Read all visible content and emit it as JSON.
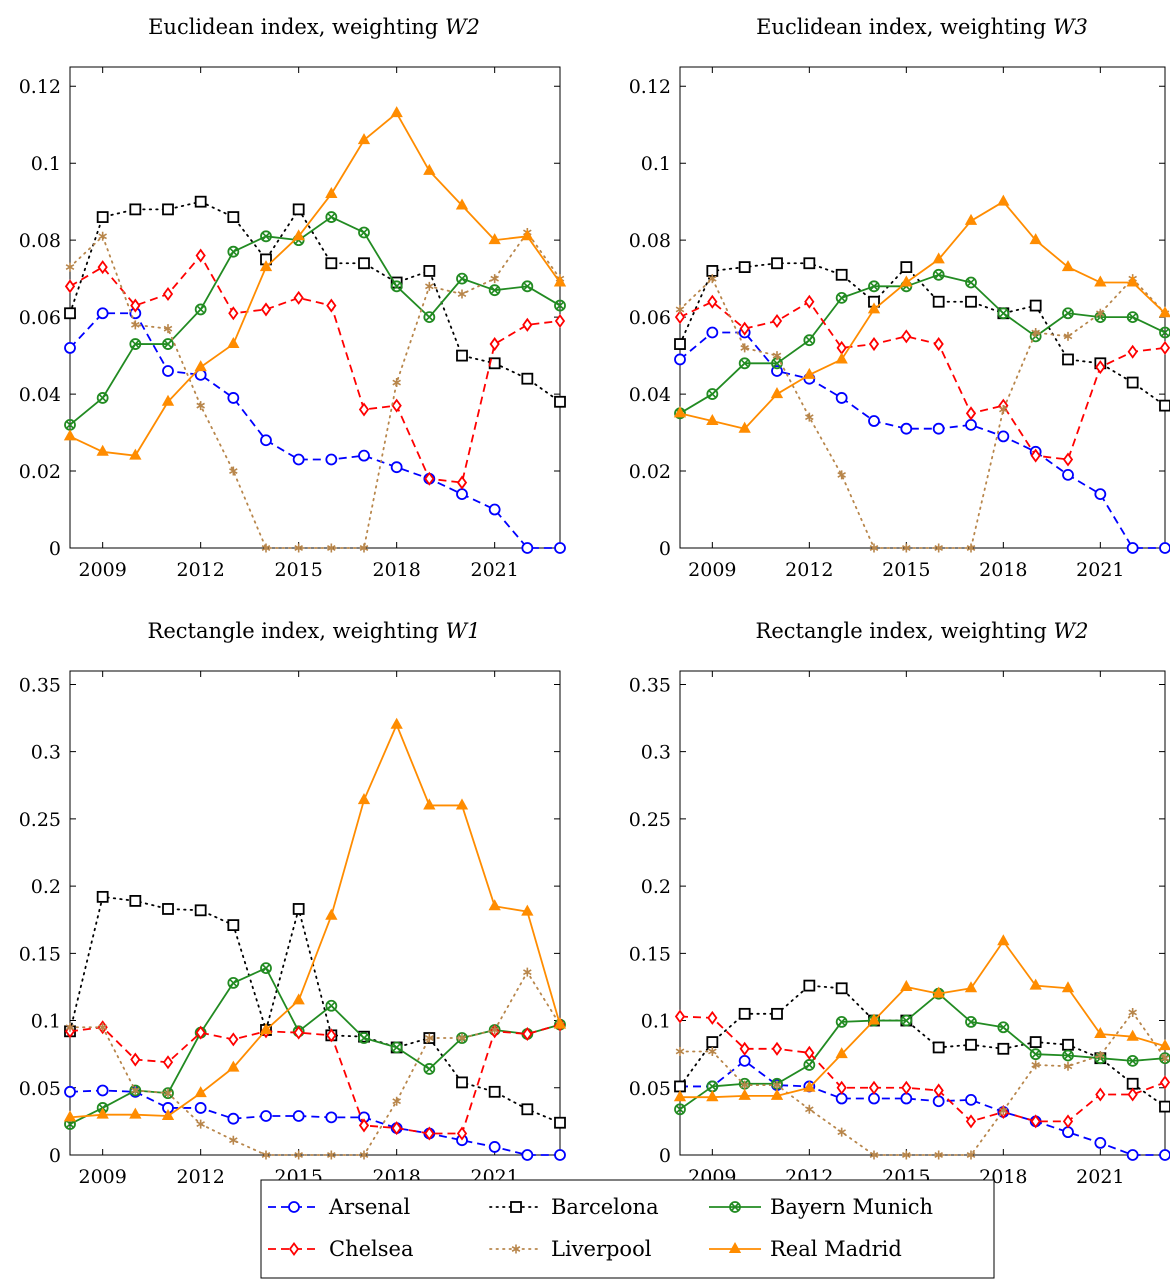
{
  "colors": {
    "Arsenal": "#0000ff",
    "Barcelona": "#000000",
    "Bayern Munich": "#228b22",
    "Chelsea": "#ff0000",
    "Liverpool": "#b8864b",
    "Real Madrid": "#ff8c00"
  },
  "legend": {
    "placement": "bottom-center",
    "entries": [
      {
        "name": "Arsenal",
        "line": "dashed",
        "marker": "circle"
      },
      {
        "name": "Barcelona",
        "line": "dotted",
        "marker": "square"
      },
      {
        "name": "Bayern Munich",
        "line": "solid",
        "marker": "circle-cross"
      },
      {
        "name": "Chelsea",
        "line": "dashed",
        "marker": "diamond"
      },
      {
        "name": "Liverpool",
        "line": "dotted",
        "marker": "asterisk"
      },
      {
        "name": "Real Madrid",
        "line": "solid",
        "marker": "triangle"
      }
    ]
  },
  "chart_data": [
    {
      "type": "line",
      "title_text": "Euclidean index, weighting ",
      "title_var": "W2",
      "x": [
        2008,
        2009,
        2010,
        2011,
        2012,
        2013,
        2014,
        2015,
        2016,
        2017,
        2018,
        2019,
        2020,
        2021,
        2022,
        2023
      ],
      "xlim": [
        2008,
        2023
      ],
      "xticks": [
        2009,
        2012,
        2015,
        2018,
        2021
      ],
      "ylim": [
        0,
        0.125
      ],
      "yticks": [
        0,
        0.02,
        0.04,
        0.06,
        0.08,
        0.1,
        0.12
      ],
      "ytick_labels": [
        "0",
        "0.02",
        "0.04",
        "0.06",
        "0.08",
        "0.1",
        "0.12"
      ],
      "grid": false,
      "series": [
        {
          "name": "Arsenal",
          "values": [
            0.052,
            0.061,
            0.061,
            0.046,
            0.045,
            0.039,
            0.028,
            0.023,
            0.023,
            0.024,
            0.021,
            0.018,
            0.014,
            0.01,
            0.0,
            0.0
          ]
        },
        {
          "name": "Barcelona",
          "values": [
            0.061,
            0.086,
            0.088,
            0.088,
            0.09,
            0.086,
            0.075,
            0.088,
            0.074,
            0.074,
            0.069,
            0.072,
            0.05,
            0.048,
            0.044,
            0.038
          ]
        },
        {
          "name": "Bayern Munich",
          "values": [
            0.032,
            0.039,
            0.053,
            0.053,
            0.062,
            0.077,
            0.081,
            0.08,
            0.086,
            0.082,
            0.068,
            0.06,
            0.07,
            0.067,
            0.068,
            0.063
          ]
        },
        {
          "name": "Chelsea",
          "values": [
            0.068,
            0.073,
            0.063,
            0.066,
            0.076,
            0.061,
            0.062,
            0.065,
            0.063,
            0.036,
            0.037,
            0.018,
            0.017,
            0.053,
            0.058,
            0.059
          ]
        },
        {
          "name": "Liverpool",
          "values": [
            0.073,
            0.081,
            0.058,
            0.057,
            0.037,
            0.02,
            0.0,
            0.0,
            0.0,
            0.0,
            0.043,
            0.068,
            0.066,
            0.07,
            0.082,
            0.07
          ]
        },
        {
          "name": "Real Madrid",
          "values": [
            0.029,
            0.025,
            0.024,
            0.038,
            0.047,
            0.053,
            0.073,
            0.081,
            0.092,
            0.106,
            0.113,
            0.098,
            0.089,
            0.08,
            0.081,
            0.069
          ]
        }
      ]
    },
    {
      "type": "line",
      "title_text": "Euclidean index, weighting ",
      "title_var": "W3",
      "x": [
        2008,
        2009,
        2010,
        2011,
        2012,
        2013,
        2014,
        2015,
        2016,
        2017,
        2018,
        2019,
        2020,
        2021,
        2022,
        2023
      ],
      "xlim": [
        2008,
        2023
      ],
      "xticks": [
        2009,
        2012,
        2015,
        2018,
        2021
      ],
      "ylim": [
        0,
        0.125
      ],
      "yticks": [
        0,
        0.02,
        0.04,
        0.06,
        0.08,
        0.1,
        0.12
      ],
      "ytick_labels": [
        "0",
        "0.02",
        "0.04",
        "0.06",
        "0.08",
        "0.1",
        "0.12"
      ],
      "grid": false,
      "series": [
        {
          "name": "Arsenal",
          "values": [
            0.049,
            0.056,
            0.056,
            0.046,
            0.044,
            0.039,
            0.033,
            0.031,
            0.031,
            0.032,
            0.029,
            0.025,
            0.019,
            0.014,
            0.0,
            0.0
          ]
        },
        {
          "name": "Barcelona",
          "values": [
            0.053,
            0.072,
            0.073,
            0.074,
            0.074,
            0.071,
            0.064,
            0.073,
            0.064,
            0.064,
            0.061,
            0.063,
            0.049,
            0.048,
            0.043,
            0.037
          ]
        },
        {
          "name": "Bayern Munich",
          "values": [
            0.035,
            0.04,
            0.048,
            0.048,
            0.054,
            0.065,
            0.068,
            0.068,
            0.071,
            0.069,
            0.061,
            0.055,
            0.061,
            0.06,
            0.06,
            0.056
          ]
        },
        {
          "name": "Chelsea",
          "values": [
            0.06,
            0.064,
            0.057,
            0.059,
            0.064,
            0.052,
            0.053,
            0.055,
            0.053,
            0.035,
            0.037,
            0.024,
            0.023,
            0.047,
            0.051,
            0.052
          ]
        },
        {
          "name": "Liverpool",
          "values": [
            0.062,
            0.07,
            0.052,
            0.05,
            0.034,
            0.019,
            0.0,
            0.0,
            0.0,
            0.0,
            0.036,
            0.056,
            0.055,
            0.061,
            0.07,
            0.061
          ]
        },
        {
          "name": "Real Madrid",
          "values": [
            0.035,
            0.033,
            0.031,
            0.04,
            0.045,
            0.049,
            0.062,
            0.069,
            0.075,
            0.085,
            0.09,
            0.08,
            0.073,
            0.069,
            0.069,
            0.061
          ]
        }
      ]
    },
    {
      "type": "line",
      "title_text": "Rectangle index, weighting ",
      "title_var": "W1",
      "x": [
        2008,
        2009,
        2010,
        2011,
        2012,
        2013,
        2014,
        2015,
        2016,
        2017,
        2018,
        2019,
        2020,
        2021,
        2022,
        2023
      ],
      "xlim": [
        2008,
        2023
      ],
      "xticks": [
        2009,
        2012,
        2015,
        2018,
        2021
      ],
      "ylim": [
        0,
        0.36
      ],
      "yticks": [
        0,
        0.05,
        0.1,
        0.15,
        0.2,
        0.25,
        0.3,
        0.35
      ],
      "ytick_labels": [
        "0",
        "0.05",
        "0.1",
        "0.15",
        "0.2",
        "0.25",
        "0.3",
        "0.35"
      ],
      "grid": false,
      "series": [
        {
          "name": "Arsenal",
          "values": [
            0.047,
            0.048,
            0.047,
            0.035,
            0.035,
            0.027,
            0.029,
            0.029,
            0.028,
            0.028,
            0.02,
            0.016,
            0.011,
            0.006,
            0.0,
            0.0
          ]
        },
        {
          "name": "Barcelona",
          "values": [
            0.092,
            0.192,
            0.189,
            0.183,
            0.182,
            0.171,
            0.093,
            0.183,
            0.089,
            0.088,
            0.08,
            0.087,
            0.054,
            0.047,
            0.034,
            0.024
          ]
        },
        {
          "name": "Bayern Munich",
          "values": [
            0.023,
            0.035,
            0.048,
            0.046,
            0.091,
            0.128,
            0.139,
            0.092,
            0.111,
            0.087,
            0.08,
            0.064,
            0.087,
            0.093,
            0.09,
            0.097
          ]
        },
        {
          "name": "Chelsea",
          "values": [
            0.092,
            0.095,
            0.071,
            0.069,
            0.091,
            0.086,
            0.092,
            0.091,
            0.089,
            0.022,
            0.02,
            0.016,
            0.016,
            0.092,
            0.09,
            0.097
          ]
        },
        {
          "name": "Liverpool",
          "values": [
            0.095,
            0.095,
            0.048,
            0.046,
            0.023,
            0.011,
            0.0,
            0.0,
            0.0,
            0.0,
            0.04,
            0.087,
            0.087,
            0.093,
            0.136,
            0.097
          ]
        },
        {
          "name": "Real Madrid",
          "values": [
            0.028,
            0.03,
            0.03,
            0.029,
            0.046,
            0.065,
            0.093,
            0.115,
            0.178,
            0.264,
            0.32,
            0.26,
            0.26,
            0.185,
            0.181,
            0.097
          ]
        }
      ]
    },
    {
      "type": "line",
      "title_text": "Rectangle index, weighting ",
      "title_var": "W2",
      "x": [
        2008,
        2009,
        2010,
        2011,
        2012,
        2013,
        2014,
        2015,
        2016,
        2017,
        2018,
        2019,
        2020,
        2021,
        2022,
        2023
      ],
      "xlim": [
        2008,
        2023
      ],
      "xticks": [
        2009,
        2012,
        2015,
        2018,
        2021
      ],
      "ylim": [
        0,
        0.36
      ],
      "yticks": [
        0,
        0.05,
        0.1,
        0.15,
        0.2,
        0.25,
        0.3,
        0.35
      ],
      "ytick_labels": [
        "0",
        "0.05",
        "0.1",
        "0.15",
        "0.2",
        "0.25",
        "0.3",
        "0.35"
      ],
      "grid": false,
      "series": [
        {
          "name": "Arsenal",
          "values": [
            0.051,
            0.051,
            0.07,
            0.052,
            0.051,
            0.042,
            0.042,
            0.042,
            0.04,
            0.041,
            0.032,
            0.025,
            0.017,
            0.009,
            0.0,
            0.0
          ]
        },
        {
          "name": "Barcelona",
          "values": [
            0.051,
            0.084,
            0.105,
            0.105,
            0.126,
            0.124,
            0.1,
            0.1,
            0.08,
            0.082,
            0.079,
            0.084,
            0.082,
            0.072,
            0.053,
            0.036
          ]
        },
        {
          "name": "Bayern Munich",
          "values": [
            0.034,
            0.051,
            0.053,
            0.053,
            0.067,
            0.099,
            0.1,
            0.1,
            0.12,
            0.099,
            0.095,
            0.075,
            0.074,
            0.072,
            0.07,
            0.072
          ]
        },
        {
          "name": "Chelsea",
          "values": [
            0.103,
            0.102,
            0.079,
            0.079,
            0.076,
            0.05,
            0.05,
            0.05,
            0.048,
            0.025,
            0.032,
            0.025,
            0.025,
            0.045,
            0.045,
            0.054
          ]
        },
        {
          "name": "Liverpool",
          "values": [
            0.077,
            0.077,
            0.052,
            0.052,
            0.034,
            0.017,
            0.0,
            0.0,
            0.0,
            0.0,
            0.033,
            0.067,
            0.066,
            0.074,
            0.106,
            0.072
          ]
        },
        {
          "name": "Real Madrid",
          "values": [
            0.043,
            0.043,
            0.044,
            0.044,
            0.05,
            0.075,
            0.1,
            0.125,
            0.12,
            0.124,
            0.159,
            0.126,
            0.124,
            0.09,
            0.088,
            0.081
          ]
        }
      ]
    }
  ]
}
